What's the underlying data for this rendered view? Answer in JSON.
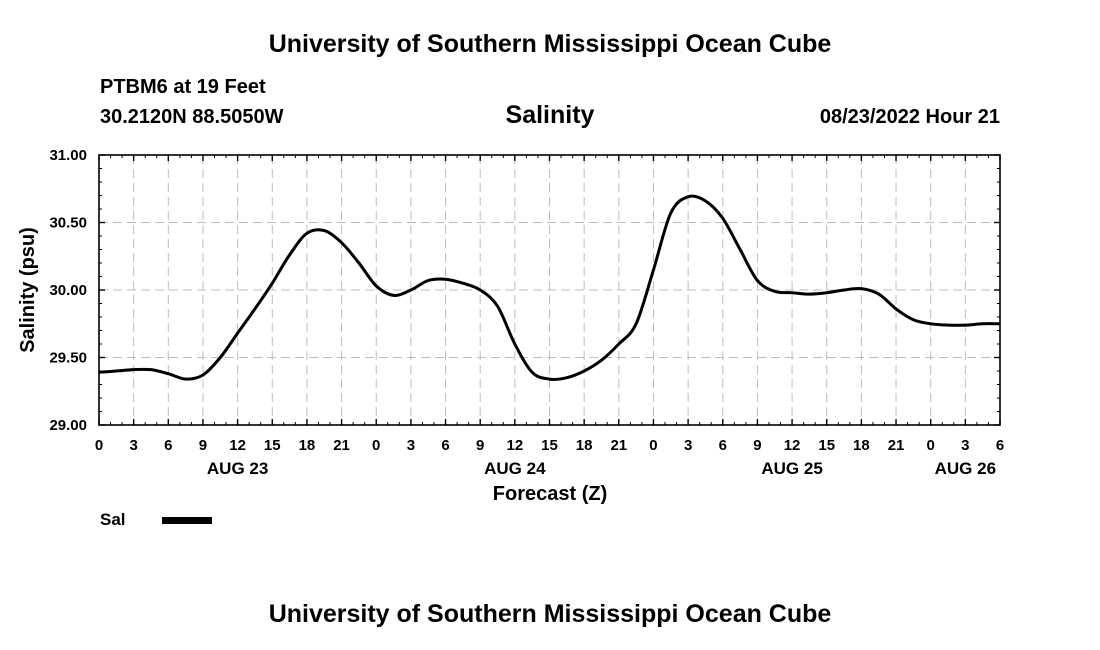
{
  "header": {
    "title": "University of Southern Mississippi Ocean Cube",
    "station": "PTBM6 at 19 Feet",
    "coordinates": "30.2120N  88.5050W",
    "datetime": "08/23/2022 Hour 21"
  },
  "footer": {
    "title": "University of Southern Mississippi Ocean Cube"
  },
  "legend": {
    "label": "Sal"
  },
  "chart_data": {
    "type": "line",
    "title": "Salinity",
    "xlabel": "Forecast (Z)",
    "ylabel": "Salinity (psu)",
    "xlim": [
      0,
      78
    ],
    "ylim": [
      29.0,
      31.0
    ],
    "grid": true,
    "y_ticks": [
      29.0,
      29.5,
      30.0,
      30.5,
      31.0
    ],
    "y_tick_labels": [
      "29.00",
      "29.50",
      "30.00",
      "30.50",
      "31.00"
    ],
    "x_ticks": [
      0,
      3,
      6,
      9,
      12,
      15,
      18,
      21,
      24,
      27,
      30,
      33,
      36,
      39,
      42,
      45,
      48,
      51,
      54,
      57,
      60,
      63,
      66,
      69,
      72,
      75,
      78
    ],
    "x_tick_labels": [
      "0",
      "3",
      "6",
      "9",
      "12",
      "15",
      "18",
      "21",
      "0",
      "3",
      "6",
      "9",
      "12",
      "15",
      "18",
      "21",
      "0",
      "3",
      "6",
      "9",
      "12",
      "15",
      "18",
      "21",
      "0",
      "3",
      "6"
    ],
    "date_labels": [
      {
        "text": "AUG 23",
        "x": 12
      },
      {
        "text": "AUG 24",
        "x": 36
      },
      {
        "text": "AUG 25",
        "x": 60
      },
      {
        "text": "AUG 26",
        "x": 75
      }
    ],
    "series": [
      {
        "name": "Sal",
        "x": [
          0,
          1.5,
          3,
          4.5,
          6,
          7.5,
          9,
          10.5,
          12,
          13.5,
          15,
          16.5,
          18,
          19.5,
          21,
          22.5,
          24,
          25.5,
          27,
          28.5,
          30,
          31.5,
          33,
          34.5,
          36,
          37.5,
          39,
          40.5,
          42,
          43.5,
          45,
          46.5,
          48,
          49.5,
          51,
          52.5,
          54,
          55.5,
          57,
          58.5,
          60,
          61.5,
          63,
          64.5,
          66,
          67.5,
          69,
          70.5,
          72,
          73.5,
          75,
          76.5,
          78
        ],
        "values": [
          29.39,
          29.4,
          29.41,
          29.41,
          29.38,
          29.34,
          29.37,
          29.5,
          29.68,
          29.86,
          30.05,
          30.26,
          30.42,
          30.44,
          30.35,
          30.2,
          30.03,
          29.96,
          30.0,
          30.07,
          30.08,
          30.05,
          30.0,
          29.88,
          29.6,
          29.39,
          29.34,
          29.35,
          29.4,
          29.48,
          29.6,
          29.75,
          30.15,
          30.57,
          30.69,
          30.66,
          30.53,
          30.3,
          30.07,
          29.99,
          29.98,
          29.97,
          29.98,
          30.0,
          30.01,
          29.97,
          29.86,
          29.78,
          29.75,
          29.74,
          29.74,
          29.75,
          29.75
        ]
      }
    ]
  }
}
